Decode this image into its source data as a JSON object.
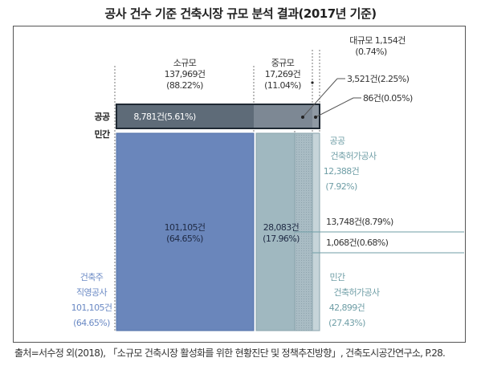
{
  "title": "공사 건수 기준 건축시장 규모 분석 결과(2017년 기준)",
  "colors": {
    "small": "#6a86bb",
    "small_border": "#5272a8",
    "medium": "#9fb7bf",
    "public_bar": "#5e6b78",
    "blue_text": "#6a89c4",
    "teal_text": "#6f9ea6",
    "dark_text": "#333333"
  },
  "chart_data": {
    "type": "mosaic",
    "title": "공사 건수 기준 건축시장 규모 분석 결과(2017년 기준)",
    "rows": [
      "공공",
      "민간"
    ],
    "columns": [
      {
        "key": "small",
        "label": "소규모",
        "count_label": "137,969건",
        "pct_label": "(88.22%)",
        "count": 137969,
        "pct": 88.22
      },
      {
        "key": "medium",
        "label": "중규모",
        "count_label": "17,269건",
        "pct_label": "(11.04%)",
        "count": 17269,
        "pct": 11.04
      },
      {
        "key": "large",
        "label": "대규모 1,154건",
        "count_label": "",
        "pct_label": "(0.74%)",
        "count": 1154,
        "pct": 0.74
      }
    ],
    "cells": [
      {
        "row": "공공",
        "col": "small",
        "label": "8,781건(5.61%)",
        "count": 8781,
        "pct": 5.61
      },
      {
        "row": "공공",
        "col": "medium",
        "label": "3,521건(2.25%)",
        "count": 3521,
        "pct": 2.25
      },
      {
        "row": "공공",
        "col": "large",
        "label": "86건(0.05%)",
        "count": 86,
        "pct": 0.05
      },
      {
        "row": "민간",
        "col": "small",
        "label_line1": "101,105건",
        "label_line2": "(64.65%)",
        "count": 101105,
        "pct": 64.65
      },
      {
        "row": "민간",
        "col": "medium",
        "label_line1": "28,083건",
        "label_line2": "(17.96%)",
        "count": 28083,
        "pct": 17.96
      },
      {
        "row": "민간",
        "col": "medium-other",
        "label": "13,748건(8.79%)",
        "count": 13748,
        "pct": 8.79
      },
      {
        "row": "민간",
        "col": "large",
        "label": "1,068건(0.68%)",
        "count": 1068,
        "pct": 0.68
      }
    ],
    "side_annotations": [
      {
        "key": "public_permit",
        "lines": [
          "공공",
          "건축허가공사",
          "12,388건",
          "(7.92%)"
        ],
        "count": 12388,
        "pct": 7.92
      },
      {
        "key": "direct",
        "lines": [
          "건축주",
          "직영공사",
          "101,105건",
          "(64.65%)"
        ],
        "count": 101105,
        "pct": 64.65
      },
      {
        "key": "private_permit",
        "lines": [
          "민간",
          "건축허가공사",
          "42,899건",
          "(27.43%)"
        ],
        "count": 42899,
        "pct": 27.43
      }
    ]
  },
  "source": "출처=서수정 외(2018), 「소규모 건축시장 활성화를 위한 현황진단 및 정책추진방향」, 건축도시공간연구소, P.28."
}
